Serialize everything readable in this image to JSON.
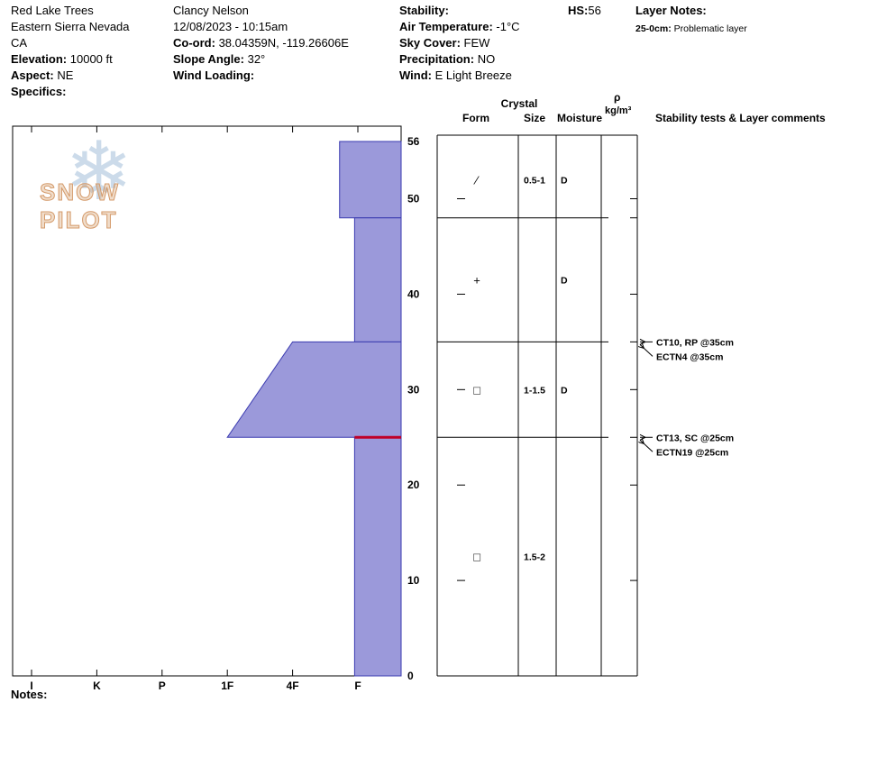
{
  "header": {
    "site": {
      "name": "Red Lake Trees",
      "region": "Eastern Sierra Nevada",
      "state": "CA",
      "elevation_label": "Elevation:",
      "elevation_value": "10000 ft",
      "aspect_label": "Aspect:",
      "aspect_value": "NE",
      "specifics_label": "Specifics:"
    },
    "observer": {
      "name": "Clancy Nelson",
      "datetime": "12/08/2023 - 10:15am",
      "coord_label": "Co-ord:",
      "coord_value": "38.04359N, -119.26606E",
      "slope_angle_label": "Slope Angle:",
      "slope_angle_value": "32°",
      "wind_loading_label": "Wind Loading:"
    },
    "conditions": {
      "stability_label": "Stability:",
      "air_temp_label": "Air Temperature:",
      "air_temp_value": "-1°C",
      "sky_cover_label": "Sky Cover:",
      "sky_cover_value": "FEW",
      "precipitation_label": "Precipitation:",
      "precipitation_value": "NO",
      "wind_label": "Wind:",
      "wind_value": "E Light Breeze"
    },
    "hs_label": "HS:",
    "hs_value": "56",
    "layer_notes_label": "Layer Notes:",
    "layer_notes": [
      {
        "range": "25-0cm:",
        "text": "Problematic layer"
      }
    ]
  },
  "watermark": "SNOW PILOT",
  "notes_label": "Notes:",
  "table_header": {
    "crystal": "Crystal",
    "form": "Form",
    "size": "Size",
    "moisture": "Moisture",
    "rho": "ρ",
    "rho_units": "kg/m³",
    "comments": "Stability tests & Layer comments"
  },
  "chart_data": {
    "type": "area",
    "title": "Snow pit hand-hardness profile",
    "hand_hardness_axis": [
      "I",
      "K",
      "P",
      "1F",
      "4F",
      "F"
    ],
    "depth_axis": {
      "unit": "cm",
      "ticks": [
        0,
        10,
        20,
        30,
        40,
        50,
        56
      ],
      "max": 56
    },
    "hs_cm": 56,
    "layers": [
      {
        "top_cm": 56,
        "bottom_cm": 48,
        "hardness": "F+",
        "h_top": 1.28,
        "h_bottom": 1.28,
        "form_symbol": "∕",
        "size_mm": "0.5-1",
        "moisture": "D"
      },
      {
        "top_cm": 48,
        "bottom_cm": 35,
        "hardness": "F",
        "h_top": 1.05,
        "h_bottom": 1.05,
        "form_symbol": "+",
        "size_mm": "",
        "moisture": "D"
      },
      {
        "top_cm": 35,
        "bottom_cm": 25,
        "hardness": "4F-1F",
        "h_top": 2.0,
        "h_bottom": 3.0,
        "form_symbol": "□",
        "size_mm": "1-1.5",
        "moisture": "D"
      },
      {
        "top_cm": 25,
        "bottom_cm": 0,
        "hardness": "F",
        "h_top": 1.05,
        "h_bottom": 1.05,
        "form_symbol": "□",
        "size_mm": "1.5-2",
        "moisture": ""
      }
    ],
    "flagged_layer": {
      "depth_cm": 25,
      "color": "#c00028"
    },
    "colors": {
      "layer_fill": "#9b99da",
      "layer_stroke": "#3a3ab0"
    },
    "stability_tests": [
      {
        "depth_cm": 35,
        "results": [
          "CT10, RP @35cm",
          "ECTN4 @35cm"
        ]
      },
      {
        "depth_cm": 25,
        "results": [
          "CT13, SC @25cm",
          "ECTN19 @25cm"
        ]
      }
    ]
  }
}
